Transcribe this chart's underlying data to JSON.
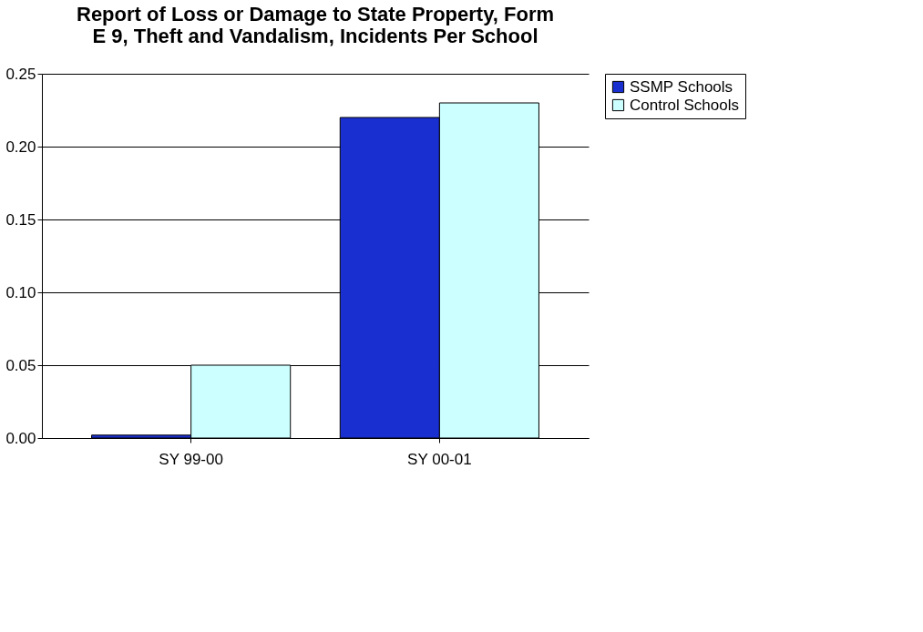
{
  "chart_data": {
    "type": "bar",
    "title": "Report of Loss or Damage to State Property, Form E 9, Theft and Vandalism, Incidents Per School",
    "categories": [
      "SY 99-00",
      "SY 00-01"
    ],
    "series": [
      {
        "name": "SSMP Schools",
        "color": "#1a2fd0",
        "values": [
          0.002,
          0.22
        ]
      },
      {
        "name": "Control Schools",
        "color": "#ccffff",
        "values": [
          0.05,
          0.23
        ]
      }
    ],
    "ylim": [
      0,
      0.25
    ],
    "yticks": [
      {
        "value": 0,
        "label": "0.00"
      },
      {
        "value": 0.05,
        "label": "0.05"
      },
      {
        "value": 0.1,
        "label": "0.10"
      },
      {
        "value": 0.15,
        "label": "0.15"
      },
      {
        "value": 0.2,
        "label": "0.20"
      },
      {
        "value": 0.25,
        "label": "0.25"
      }
    ],
    "grid": "y",
    "legend": "top right"
  }
}
